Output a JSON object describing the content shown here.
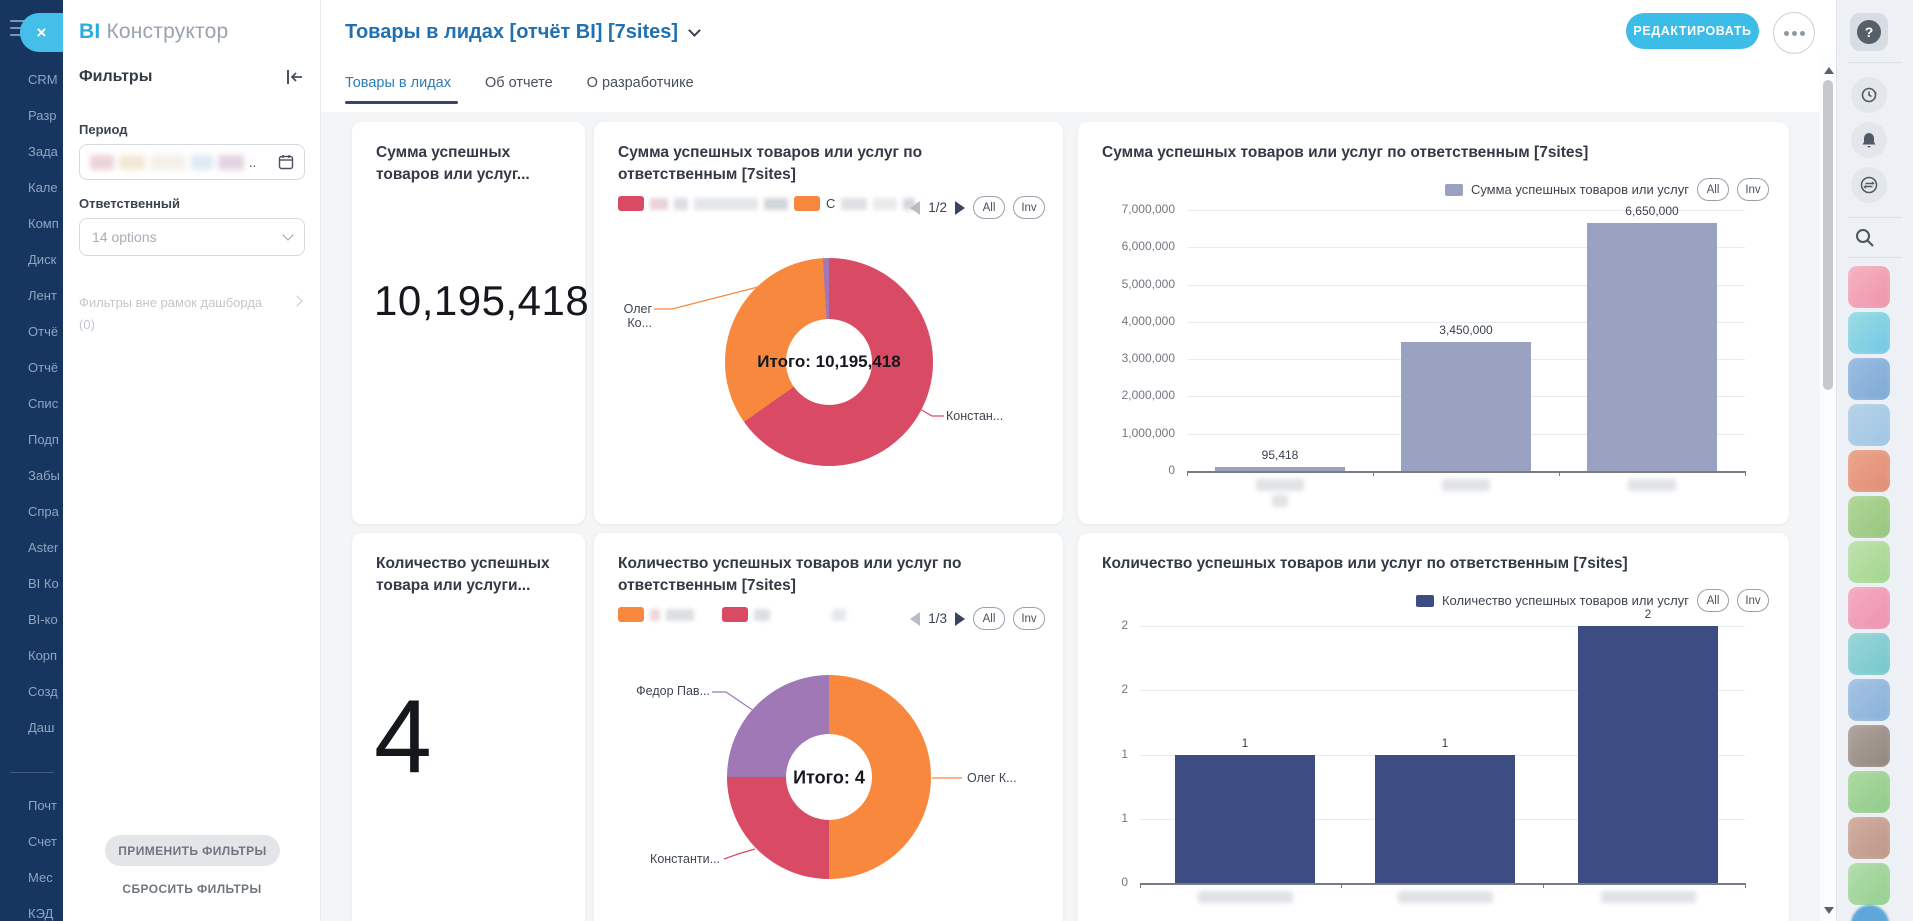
{
  "app": {
    "brand_bi": "BI",
    "brand_name": "Конструктор"
  },
  "colors": {
    "accent_cyan": "#3bbde8",
    "title_blue": "#2171b2",
    "sidebar_navy": "#17365f",
    "donut_crimson": "#d94a64",
    "donut_orange": "#f8883e",
    "donut_purple": "#a178b6",
    "bar_sum": "#9ba1c0",
    "bar_count": "#3e4c84"
  },
  "left_rail": {
    "items_top": [
      "CRM",
      "Разр",
      "Зада",
      "Кале",
      "Комп",
      "Диск",
      "Лент",
      "Отчё",
      "Отчё",
      "Спис",
      "Подп",
      "Забы",
      "Спра",
      "Aster",
      "BI Ко",
      "BI-ко",
      "Корп",
      "Созд",
      "Даш"
    ],
    "items_bottom": [
      "Почт",
      "Счет",
      "Мес",
      "КЭД"
    ]
  },
  "filters": {
    "title": "Фильтры",
    "period_label": "Период",
    "period_ellipsis": "..",
    "responsible_label": "Ответственный",
    "responsible_value": "14 options",
    "outer_filters_label": "Фильтры вне рамок дашборда",
    "outer_filters_count": "(0)",
    "apply_label": "ПРИМЕНИТЬ ФИЛЬТРЫ",
    "reset_label": "СБРОСИТЬ ФИЛЬТРЫ"
  },
  "header": {
    "title": "Товары в лидах [отчёт BI] [7sites]",
    "edit_label": "РЕДАКТИРОВАТЬ"
  },
  "tabs": [
    {
      "label": "Товары в лидах",
      "active": true
    },
    {
      "label": "Об отчете",
      "active": false
    },
    {
      "label": "О разработчике",
      "active": false
    }
  ],
  "kpi": {
    "sum_title_1": "Сумма успешных",
    "sum_title_2": "товаров или услуг...",
    "sum_value": "10,195,418",
    "count_title_1": "Количество успешных",
    "count_title_2": "товара или услуги...",
    "count_value": "4"
  },
  "donut_cards": {
    "sum": {
      "title_1": "Сумма успешных товаров или услуг по",
      "title_2": "ответственным [7sites]",
      "page": "1/2",
      "legend_char": "С"
    },
    "count": {
      "title_1": "Количество успешных товаров или услуг по",
      "title_2": "ответственным [7sites]",
      "page": "1/3"
    }
  },
  "ui": {
    "all": "All",
    "inv": "Inv",
    "help_glyph": "?"
  },
  "right_rail": {
    "icons": [
      "help",
      "timer",
      "notifications",
      "dialog",
      "search"
    ],
    "avatars": [
      [
        "#f5b8c6",
        "#ef8fa6"
      ],
      [
        "#9fe0e2",
        "#6ec4e8"
      ],
      [
        "#9dc0e2",
        "#7ba7d4"
      ],
      [
        "#b9d5ea",
        "#9cc3e2"
      ],
      [
        "#eda88f",
        "#e08a72"
      ],
      [
        "#b5d89e",
        "#93c478"
      ],
      [
        "#c4e4b4",
        "#9cd488"
      ],
      [
        "#f4b0c4",
        "#ee8fae"
      ],
      [
        "#9fd8da",
        "#6fc5cb"
      ],
      [
        "#a9c6e4",
        "#84aed9"
      ],
      [
        "#b4a9a2",
        "#8d8179"
      ],
      [
        "#b2dca8",
        "#8cc983"
      ],
      [
        "#d3b2a4",
        "#bb9486"
      ],
      [
        "#b8dfb0",
        "#90cd8b"
      ]
    ]
  },
  "chart_data": [
    {
      "id": "sum_by_responsible_donut",
      "type": "pie",
      "title": "Сумма успешных товаров или услуг по ответственным [7sites]",
      "center_label": "Итого: 10,195,418",
      "total": 10195418,
      "legend_position": "top",
      "legend_page": "1/2",
      "slices": [
        {
          "label": "Констан...",
          "value": 6650000,
          "color": "#d94a64"
        },
        {
          "label": "Олег Ко...",
          "value": 3450000,
          "color": "#f8883e"
        },
        {
          "label": "",
          "value": 95418,
          "color": "#a178b6"
        }
      ]
    },
    {
      "id": "sum_by_responsible_bar",
      "type": "bar",
      "title": "Сумма успешных товаров или услуг по ответственным [7sites]",
      "series_name": "Сумма успешных товаров или услуг",
      "categories": [
        "",
        "",
        ""
      ],
      "categories_blurred": true,
      "values": [
        95418,
        3450000,
        6650000
      ],
      "value_labels": [
        "95,418",
        "3,450,000",
        "6,650,000"
      ],
      "ylim": [
        0,
        7000000
      ],
      "yticks": [
        "7,000,000",
        "6,000,000",
        "5,000,000",
        "4,000,000",
        "3,000,000",
        "2,000,000",
        "1,000,000",
        "0"
      ],
      "grid": true,
      "bar_color": "#9ba1c0",
      "legend_position": "top-right"
    },
    {
      "id": "count_by_responsible_donut",
      "type": "pie",
      "title": "Количество успешных товаров или услуг по ответственным [7sites]",
      "center_label": "Итого: 4",
      "total": 4,
      "legend_position": "top",
      "legend_page": "1/3",
      "slices": [
        {
          "label": "Олег К...",
          "value": 2,
          "color": "#f8883e"
        },
        {
          "label": "Константи...",
          "value": 1,
          "color": "#d94a64"
        },
        {
          "label": "Федор Пав...",
          "value": 1,
          "color": "#a178b6"
        }
      ]
    },
    {
      "id": "count_by_responsible_bar",
      "type": "bar",
      "title": "Количество успешных товаров или услуг по ответственным [7sites]",
      "series_name": "Количество успешных товаров или услуг",
      "categories": [
        "",
        "",
        ""
      ],
      "categories_blurred": true,
      "values": [
        1,
        1,
        2
      ],
      "value_labels": [
        "1",
        "1",
        "2"
      ],
      "ylim": [
        0,
        2
      ],
      "yticks": [
        "2",
        "2",
        "1",
        "1",
        "0"
      ],
      "grid": true,
      "bar_color": "#3e4c84",
      "legend_position": "top-right"
    }
  ]
}
